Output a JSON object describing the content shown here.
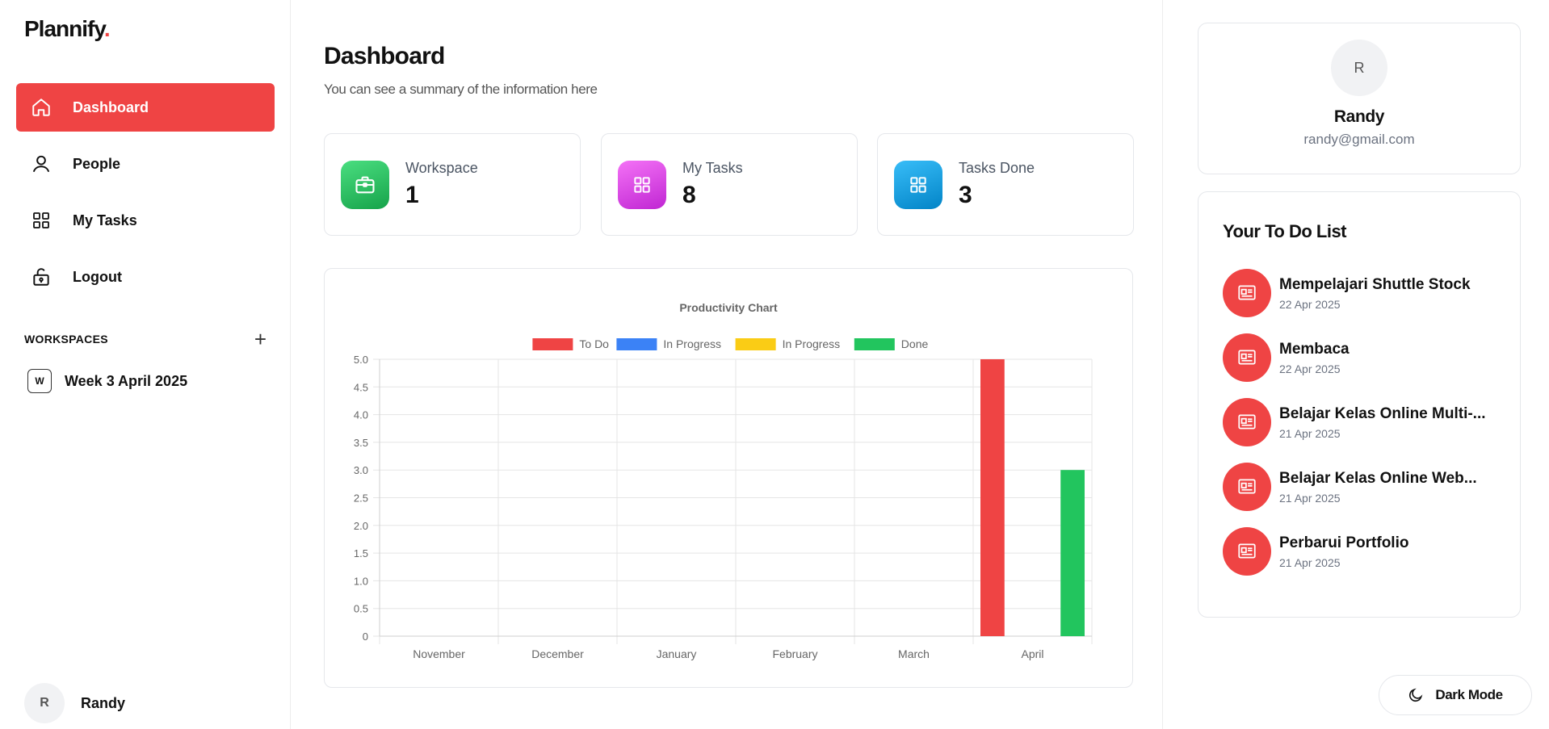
{
  "app": {
    "logo_text": "Plannify",
    "logo_dot": "."
  },
  "sidebar": {
    "items": [
      {
        "label": "Dashboard",
        "icon": "home-icon",
        "active": true
      },
      {
        "label": "People",
        "icon": "user-icon",
        "active": false
      },
      {
        "label": "My Tasks",
        "icon": "grid-icon",
        "active": false
      },
      {
        "label": "Logout",
        "icon": "lock-icon",
        "active": false
      }
    ],
    "workspaces_title": "WORKSPACES",
    "workspace_add": "+",
    "workspaces": [
      {
        "badge": "W",
        "label": "Week 3 April 2025"
      }
    ],
    "user": {
      "initial": "R",
      "name": "Randy"
    }
  },
  "main": {
    "title": "Dashboard",
    "subtitle": "You can see a summary of the information here",
    "stats": [
      {
        "label": "Workspace",
        "value": "1",
        "icon": "briefcase-icon",
        "color": "#22c55e"
      },
      {
        "label": "My Tasks",
        "value": "8",
        "icon": "grid-icon",
        "color": "#d946ef"
      },
      {
        "label": "Tasks Done",
        "value": "3",
        "icon": "grid-icon",
        "color": "#0ea5e9"
      }
    ]
  },
  "chart_data": {
    "type": "bar",
    "title": "Productivity Chart",
    "categories": [
      "November",
      "December",
      "January",
      "February",
      "March",
      "April"
    ],
    "series": [
      {
        "name": "To Do",
        "color": "#ef4444",
        "values": [
          0,
          0,
          0,
          0,
          0,
          5
        ]
      },
      {
        "name": "In Progress",
        "color": "#3b82f6",
        "values": [
          0,
          0,
          0,
          0,
          0,
          0
        ]
      },
      {
        "name": "In Progress",
        "color": "#facc15",
        "values": [
          0,
          0,
          0,
          0,
          0,
          0
        ]
      },
      {
        "name": "Done",
        "color": "#22c55e",
        "values": [
          0,
          0,
          0,
          0,
          0,
          3
        ]
      }
    ],
    "ylim": [
      0,
      5
    ],
    "yticks": [
      "0",
      "0.5",
      "1.0",
      "1.5",
      "2.0",
      "2.5",
      "3.0",
      "3.5",
      "4.0",
      "4.5",
      "5.0"
    ],
    "legend": "top",
    "grid": true
  },
  "profile": {
    "initial": "R",
    "name": "Randy",
    "email": "randy@gmail.com"
  },
  "todo": {
    "title": "Your To Do List",
    "items": [
      {
        "name": "Mempelajari Shuttle Stock",
        "date": "22 Apr 2025"
      },
      {
        "name": "Membaca",
        "date": "22 Apr 2025"
      },
      {
        "name": "Belajar Kelas Online Multi-...",
        "date": "21 Apr 2025"
      },
      {
        "name": "Belajar Kelas Online Web...",
        "date": "21 Apr 2025"
      },
      {
        "name": "Perbarui Portfolio",
        "date": "21 Apr 2025"
      }
    ]
  },
  "dark_mode": {
    "label": "Dark Mode",
    "icon": "moon-icon"
  }
}
